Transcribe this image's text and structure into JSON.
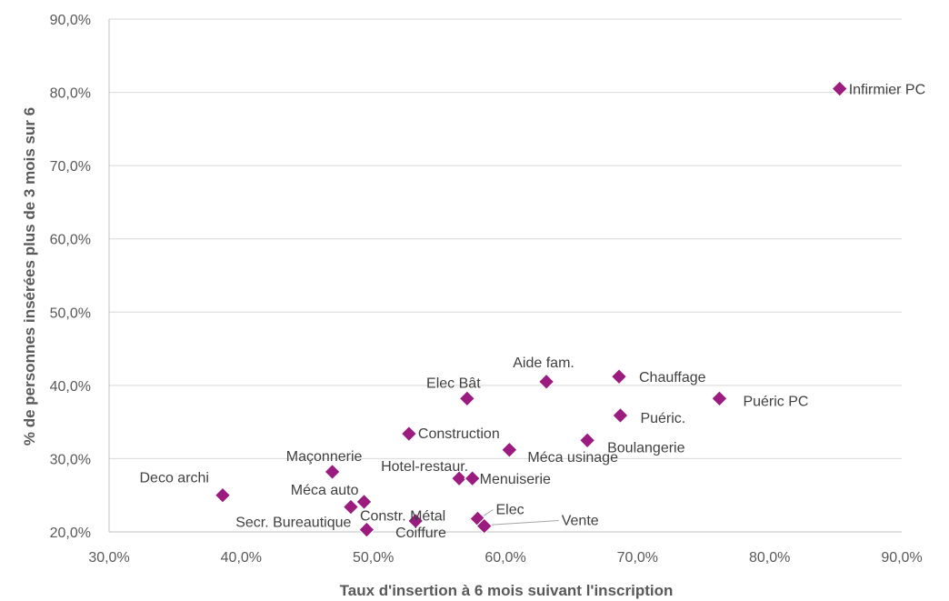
{
  "chart_data": {
    "type": "scatter",
    "xlabel": "Taux d'insertion à 6 mois suivant l'inscription",
    "ylabel": "% de personnes insérées plus de 3 mois sur 6",
    "xlim": [
      30,
      90
    ],
    "ylim": [
      20,
      90
    ],
    "x_ticks": [
      "30,0%",
      "40,0%",
      "50,0%",
      "60,0%",
      "70,0%",
      "80,0%",
      "90,0%"
    ],
    "y_ticks": [
      "20,0%",
      "30,0%",
      "40,0%",
      "50,0%",
      "60,0%",
      "70,0%",
      "80,0%",
      "90,0%"
    ],
    "grid": "horizontal",
    "marker": "diamond",
    "marker_color": "#9b1b7e",
    "points": [
      {
        "label": "Infirmier PC",
        "x": 85.3,
        "y": 80.5
      },
      {
        "label": "Aide fam.",
        "x": 63.1,
        "y": 40.5
      },
      {
        "label": "Chauffage",
        "x": 68.6,
        "y": 41.2
      },
      {
        "label": "Elec Bât",
        "x": 57.1,
        "y": 38.2
      },
      {
        "label": "Puéric PC",
        "x": 76.2,
        "y": 38.2
      },
      {
        "label": "Puéric.",
        "x": 68.7,
        "y": 35.9
      },
      {
        "label": "Construction",
        "x": 52.7,
        "y": 33.4
      },
      {
        "label": "Boulangerie",
        "x": 66.2,
        "y": 32.5
      },
      {
        "label": "Méca usinage",
        "x": 60.3,
        "y": 31.2
      },
      {
        "label": "Maçonnerie",
        "x": 46.9,
        "y": 28.2
      },
      {
        "label": "Hotel-restaur.",
        "x": 56.5,
        "y": 27.3
      },
      {
        "label": "Menuiserie",
        "x": 57.5,
        "y": 27.3
      },
      {
        "label": "Deco archi",
        "x": 38.6,
        "y": 25.0
      },
      {
        "label": "Méca auto",
        "x": 49.3,
        "y": 24.1
      },
      {
        "label": "Constr. Métal",
        "x": 48.3,
        "y": 23.4
      },
      {
        "label": "Elec",
        "x": 57.9,
        "y": 21.8
      },
      {
        "label": "Coiffure",
        "x": 53.2,
        "y": 21.5
      },
      {
        "label": "Vente",
        "x": 58.4,
        "y": 20.8
      },
      {
        "label": "Secr. Bureautique",
        "x": 49.5,
        "y": 20.3
      }
    ]
  }
}
